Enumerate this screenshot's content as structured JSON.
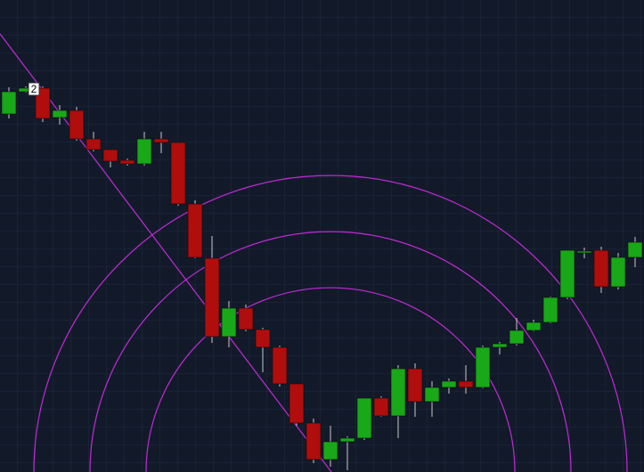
{
  "chart_data": {
    "type": "candlestick",
    "annotation": "2",
    "up_color": "#18a818",
    "down_color": "#b00d0d",
    "ylim": [
      0,
      530
    ],
    "grid": true,
    "open": [
      402,
      427,
      431,
      398,
      406,
      374,
      362,
      350,
      346,
      374,
      370,
      301,
      240,
      152,
      184,
      160,
      140,
      99,
      55,
      14,
      34,
      38,
      83,
      63,
      116,
      79,
      95,
      102,
      95,
      140,
      144,
      159,
      168,
      196,
      246,
      249,
      208,
      241
    ],
    "high": [
      432,
      433,
      433,
      412,
      410,
      382,
      362,
      352,
      382,
      382,
      370,
      305,
      265,
      192,
      188,
      162,
      142,
      99,
      60,
      52,
      40,
      83,
      85,
      120,
      122,
      102,
      105,
      120,
      142,
      146,
      173,
      171,
      197,
      249,
      252,
      253,
      246,
      264
    ],
    "low": [
      397,
      426,
      393,
      390,
      372,
      360,
      342,
      344,
      344,
      358,
      299,
      240,
      145,
      140,
      158,
      112,
      96,
      52,
      10,
      6,
      2,
      36,
      62,
      38,
      62,
      62,
      88,
      88,
      94,
      132,
      142,
      158,
      167,
      194,
      240,
      201,
      205,
      230
    ],
    "close": [
      427,
      431,
      397,
      406,
      374,
      362,
      349,
      346,
      374,
      370,
      301,
      241,
      152,
      184,
      160,
      140,
      99,
      55,
      14,
      34,
      38,
      83,
      63,
      116,
      79,
      95,
      102,
      95,
      140,
      144,
      159,
      168,
      196,
      249,
      248,
      208,
      241,
      258
    ]
  }
}
